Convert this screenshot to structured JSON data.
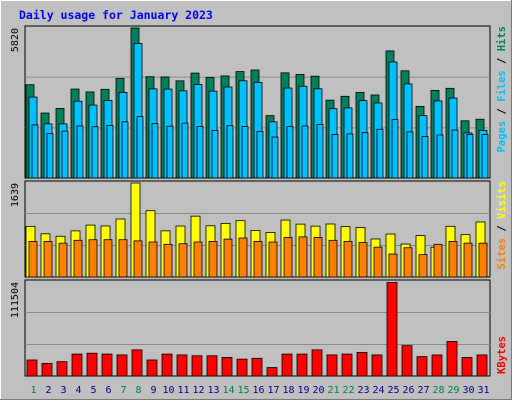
{
  "chart_data": {
    "type": "bar",
    "title": "Daily usage for January 2023",
    "categories": [
      "1",
      "2",
      "3",
      "4",
      "5",
      "6",
      "7",
      "8",
      "9",
      "10",
      "11",
      "12",
      "13",
      "14",
      "15",
      "16",
      "17",
      "18",
      "19",
      "20",
      "21",
      "22",
      "23",
      "24",
      "25",
      "26",
      "27",
      "28",
      "29",
      "30",
      "31"
    ],
    "weekend_days": [
      "1",
      "7",
      "8",
      "14",
      "15",
      "21",
      "22",
      "28",
      "29"
    ],
    "panels": [
      {
        "ymax_label": "5820",
        "ymax": 5820,
        "series": [
          {
            "name": "Hits",
            "color": "#00805c",
            "values": [
              3620,
              2520,
              2700,
              3450,
              3340,
              3440,
              3860,
              5820,
              3930,
              3920,
              3770,
              4070,
              3900,
              3960,
              4130,
              4190,
              2420,
              4080,
              4020,
              3950,
              3020,
              3170,
              3320,
              3220,
              4930,
              4160,
              2780,
              3400,
              3480,
              2220,
              2280
            ]
          },
          {
            "name": "Files",
            "color": "#00c0ff",
            "values": [
              3140,
              2100,
              2100,
              2980,
              2830,
              3010,
              3320,
              5220,
              3460,
              3450,
              3380,
              3630,
              3370,
              3530,
              3770,
              3710,
              2180,
              3490,
              3560,
              3460,
              2690,
              2720,
              3000,
              2910,
              4500,
              3650,
              2420,
              2990,
              3100,
              1750,
              1850
            ]
          },
          {
            "name": "Pages",
            "color": "#00c0ff",
            "values": [
              2060,
              1720,
              1820,
              2020,
              1990,
              2040,
              2180,
              2380,
              2110,
              2010,
              2130,
              2000,
              1850,
              2030,
              2000,
              1810,
              1590,
              2000,
              2020,
              2080,
              1690,
              1710,
              1760,
              1890,
              2270,
              1790,
              1610,
              1670,
              1860,
              1690,
              1690
            ]
          }
        ]
      },
      {
        "ymax_label": "1639",
        "ymax": 1639,
        "series": [
          {
            "name": "Visits",
            "color": "#ffff00",
            "values": [
              883,
              753,
              710,
              804,
              905,
              890,
              1011,
              1639,
              1156,
              805,
              889,
              1061,
              893,
              935,
              982,
              812,
              777,
              993,
              922,
              887,
              924,
              878,
              862,
              663,
              749,
              575,
              722,
              519,
              884,
              738,
              960
            ]
          },
          {
            "name": "Sites",
            "color": "#ff8000",
            "values": [
              620,
              620,
              590,
              640,
              650,
              650,
              650,
              630,
              610,
              570,
              580,
              610,
              620,
              660,
              680,
              620,
              610,
              690,
              700,
              690,
              640,
              620,
              600,
              520,
              400,
              510,
              390,
              570,
              620,
              590,
              590
            ]
          }
        ]
      },
      {
        "ymax_label": "111504",
        "ymax": 111504,
        "series": [
          {
            "name": "KBytes",
            "color": "#ff0000",
            "values": [
              19000,
              15000,
              17000,
              26000,
              27000,
              26000,
              25000,
              31000,
              19000,
              26000,
              25000,
              24000,
              24000,
              22000,
              20000,
              21000,
              10000,
              26000,
              26000,
              31000,
              25000,
              26000,
              28000,
              25000,
              111000,
              36000,
              23000,
              25000,
              41000,
              22000,
              25000
            ]
          }
        ]
      }
    ],
    "right_labels": [
      [
        {
          "text": "Pages",
          "color": "#00c0ff"
        },
        {
          "text": " / ",
          "color": "#000000"
        },
        {
          "text": "Files",
          "color": "#00c0ff"
        },
        {
          "text": " / ",
          "color": "#000000"
        },
        {
          "text": "Hits",
          "color": "#00805c"
        }
      ],
      [
        {
          "text": "Sites",
          "color": "#ff8000"
        },
        {
          "text": " / ",
          "color": "#000000"
        },
        {
          "text": "Visits",
          "color": "#ffff00"
        }
      ],
      [
        {
          "text": "KBytes",
          "color": "#ff0000"
        }
      ]
    ],
    "colors": {
      "title": "#0000ff",
      "plot_background": "#c0c0c0",
      "frame_background": "#c0c0c0",
      "weekday_label": "#00008b",
      "weekend_label": "#008040",
      "gridline": "#8a8a8a"
    }
  }
}
